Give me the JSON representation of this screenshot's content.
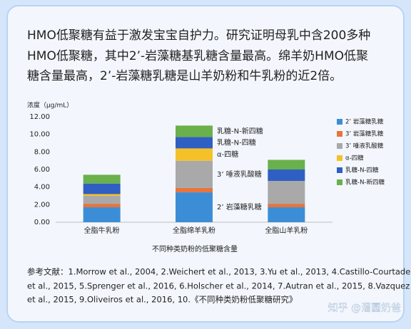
{
  "intro": [
    "HMO低聚糖有益于激发宝宝自护力。研究证明母乳中含200多种",
    "HMO低聚糖，其中2’-岩藻糖基乳糖含量最高。绵羊奶HMO低聚",
    "糖含量最高，2’-岩藻糖乳糖是山羊奶粉和牛乳粉的近2倍。"
  ],
  "chart_data": {
    "type": "stacked_bar",
    "y_label": "浓度（μg/mL）",
    "x_label": "不同种类奶粉的低聚糖含量",
    "categories": [
      "全脂牛乳粉",
      "全脂绵羊乳粉",
      "全脂山羊乳粉"
    ],
    "series": [
      {
        "name": "2’ 岩藻糖乳糖",
        "color": "#3b8ed6",
        "values": [
          1.7,
          3.4,
          1.7
        ]
      },
      {
        "name": "3’ 岩藻糖乳糖",
        "color": "#e8743b",
        "values": [
          0.4,
          0.5,
          0.4
        ]
      },
      {
        "name": "3’ 唾液乳酸糖",
        "color": "#a9a9a9",
        "values": [
          0.9,
          3.1,
          2.6
        ]
      },
      {
        "name": "α-四糖",
        "color": "#f5c12a",
        "values": [
          0.2,
          1.4,
          0
        ]
      },
      {
        "name": "乳糖-N-四糖",
        "color": "#2f5fc2",
        "values": [
          1.2,
          1.3,
          1.3
        ]
      },
      {
        "name": "乳糖-N-新四糖",
        "color": "#6ab04c",
        "values": [
          1.0,
          1.3,
          1.1
        ]
      }
    ],
    "annotations": [
      "2’ 岩藻糖乳糖",
      "3’ 唾液乳酸糖",
      "α-四糖",
      "乳糖-N-四糖",
      "乳糖-N-新四糖"
    ],
    "ylim": [
      0,
      12
    ],
    "yticks": [
      {
        "value": 0,
        "label": "0.00"
      },
      {
        "value": 2,
        "label": "2.00"
      },
      {
        "value": 4,
        "label": "4.00"
      },
      {
        "value": 6,
        "label": "6.00"
      },
      {
        "value": 8,
        "label": "8.00"
      },
      {
        "value": 10,
        "label": "10.00"
      },
      {
        "value": 12,
        "label": "12.00"
      }
    ],
    "grid": false,
    "legend": "right"
  },
  "references": [
    "参考文献：1.Morrow et al., 2004,   2.Weichert et al., 2013,   3.Yu et al., 2013,   4.Castillo-Courtade",
    "et al., 2015,   5.Sprenger et al., 2016,   6.Holscher et al., 2014,   7.Autran et al., 2015,   8.Vazquez",
    "et al., 2015,   9.Oliveiros et al., 2016,   10.《不同种类奶粉低聚糖研究》"
  ],
  "watermark": "知乎 @溜圆奶爸"
}
